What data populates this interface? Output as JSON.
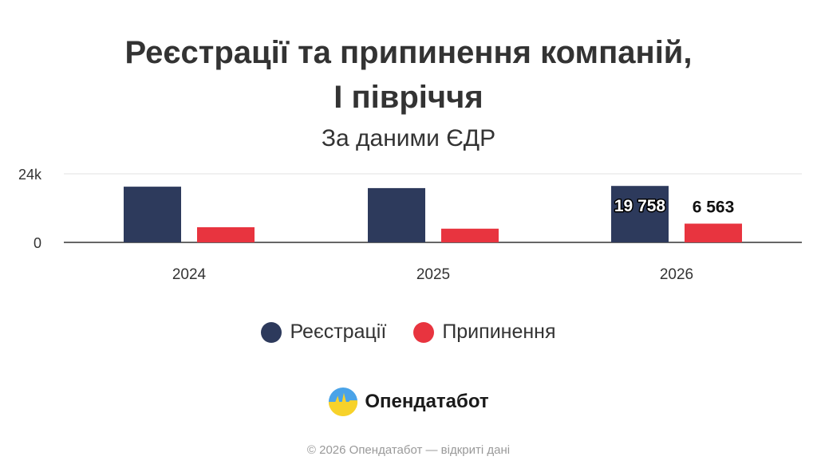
{
  "chart_data": {
    "type": "bar",
    "title": [
      "Реєстрації та припинення компаній,",
      "І півріччя"
    ],
    "subtitle": "За даними ЄДР",
    "categories": [
      "2024",
      "2025",
      "2026"
    ],
    "series": [
      {
        "name": "Реєстрації",
        "color": "#2d3a5c",
        "values": [
          19500,
          19000,
          19758
        ],
        "labels": [
          "",
          "",
          "19 758"
        ]
      },
      {
        "name": "Припинення",
        "color": "#e8343f",
        "values": [
          5300,
          4800,
          6563
        ],
        "labels": [
          "",
          "",
          "6 563"
        ]
      }
    ],
    "yticks": [
      {
        "value": 0,
        "label": "0"
      },
      {
        "value": 24000,
        "label": "24k"
      }
    ],
    "ylim": [
      0,
      24000
    ],
    "grid": true,
    "legend": "bottom-center"
  },
  "brand": {
    "name": "Опендатабот",
    "logo": "opendatabot-logo"
  },
  "footer": "© 2026 Опендатабот — відкриті дані"
}
